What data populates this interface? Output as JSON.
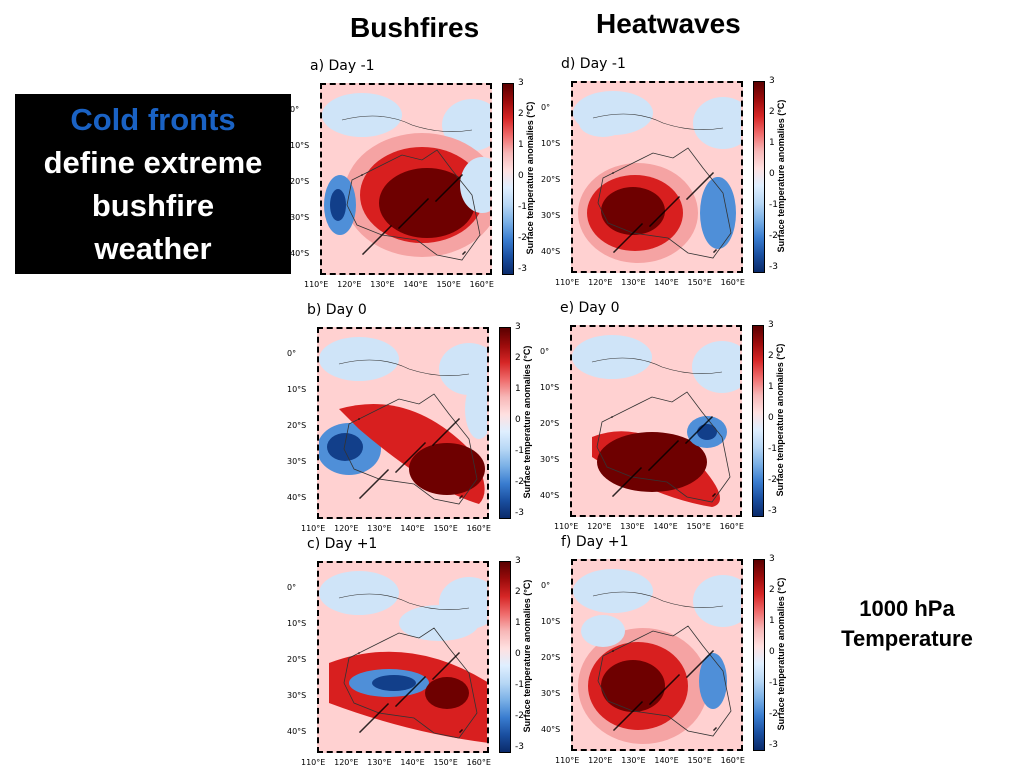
{
  "headline": {
    "line1": "Cold fronts",
    "line2": "define extreme",
    "line3": "bushfire",
    "line4": "weather"
  },
  "columns": {
    "left": "Bushfires",
    "right": "Heatwaves"
  },
  "side_note": {
    "line1": "1000 hPa",
    "line2": "Temperature"
  },
  "axes": {
    "lat": [
      "0°",
      "10°S",
      "20°S",
      "30°S",
      "40°S"
    ],
    "lon": [
      "110°E",
      "120°E",
      "130°E",
      "140°E",
      "150°E",
      "160°E"
    ]
  },
  "colorbar": {
    "label": "Surface temperature anomalies (°C)",
    "ticks": [
      "3",
      "2",
      "1",
      "0",
      "-1",
      "-2",
      "-3"
    ]
  },
  "panels": [
    {
      "id": "a",
      "label": "a) Day -1"
    },
    {
      "id": "b",
      "label": "b) Day 0"
    },
    {
      "id": "c",
      "label": "c) Day +1"
    },
    {
      "id": "d",
      "label": "d) Day -1"
    },
    {
      "id": "e",
      "label": "e) Day 0"
    },
    {
      "id": "f",
      "label": "f) Day +1"
    }
  ],
  "colors": {
    "dark_red": "#6e0000",
    "red": "#d81f1f",
    "light_red": "#f5a3a3",
    "pale_red": "#ffd1d1",
    "pale_blue": "#cfe4f8",
    "blue": "#4f8fd8",
    "dark_blue": "#123f8a"
  }
}
